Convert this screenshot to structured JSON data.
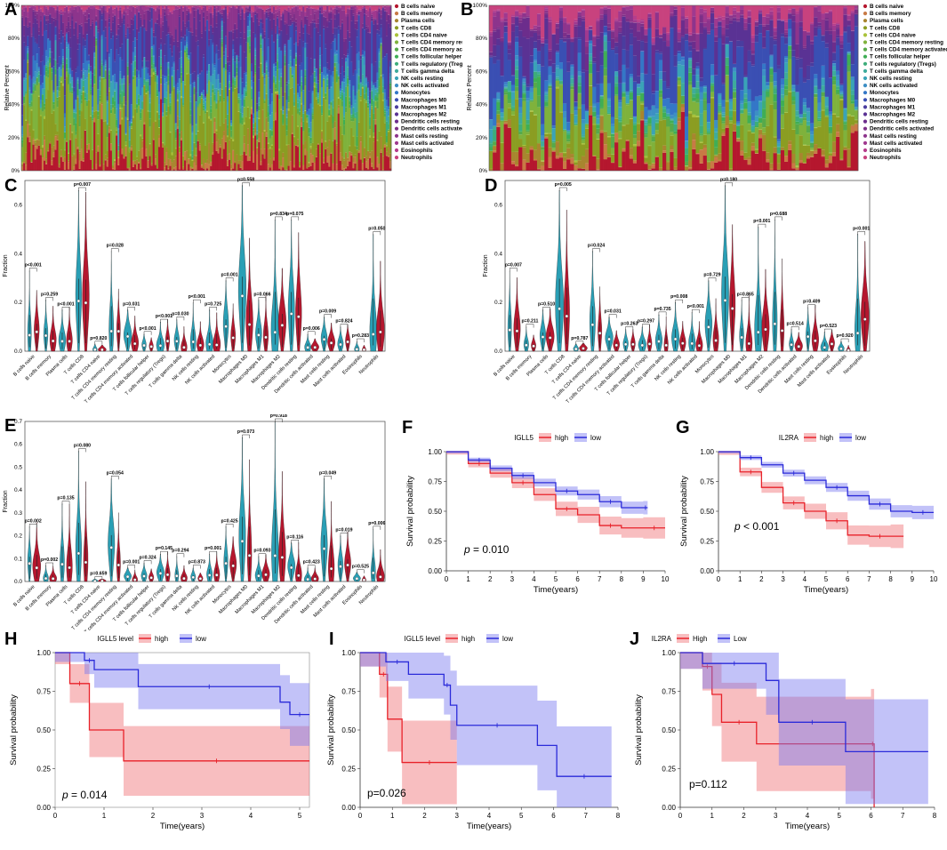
{
  "panels": {
    "A": "A",
    "B": "B",
    "C": "C",
    "D": "D",
    "E": "E",
    "F": "F",
    "G": "G",
    "H": "H",
    "I": "I",
    "J": "J"
  },
  "cell_types": [
    "B cells naive",
    "B cells memory",
    "Plasma cells",
    "T cells CD8",
    "T cells CD4 naive",
    "T cells CD4 memory resting",
    "T cells CD4 memory activated",
    "T cells follicular helper",
    "T cells regulatory (Tregs)",
    "T cells gamma delta",
    "NK cells resting",
    "NK cells activated",
    "Monocytes",
    "Macrophages M0",
    "Macrophages M1",
    "Macrophages M2",
    "Dendritic cells resting",
    "Dendritic cells activated",
    "Mast cells resting",
    "Mast cells activated",
    "Eosinophils",
    "Neutrophils"
  ],
  "cell_colors": [
    "#b5172e",
    "#c87a45",
    "#a8852f",
    "#8b9d22",
    "#a9c23a",
    "#7fb23c",
    "#57a94a",
    "#3fae55",
    "#3dad7a",
    "#3eab9c",
    "#3aa3b7",
    "#3d8fc4",
    "#3477c7",
    "#3a4fb3",
    "#4a3d9f",
    "#5a3294",
    "#6c2d8c",
    "#7d3088",
    "#8d348c",
    "#a0398f",
    "#b63d8b",
    "#c8427e"
  ],
  "chart_data": [
    {
      "panel": "A",
      "type": "bar",
      "stacked": true,
      "ylabel": "Relative Percent",
      "yticks": [
        "0%",
        "20%",
        "40%",
        "60%",
        "80%",
        "100%"
      ],
      "n_samples": 200
    },
    {
      "panel": "B",
      "type": "bar",
      "stacked": true,
      "ylabel": "Relative Percent",
      "yticks": [
        "0%",
        "20%",
        "40%",
        "60%",
        "80%",
        "100%"
      ],
      "n_samples": 100
    },
    {
      "panel": "C",
      "type": "violin",
      "ylabel": "Fraction",
      "ylim": [
        0,
        0.7
      ],
      "yticks": [
        "0.0",
        "0.2",
        "0.4",
        "0.6"
      ],
      "pvalues": [
        "p<0.001",
        "p=0.259",
        "p<0.001",
        "p=0.007",
        "p=0.820",
        "p=0.028",
        "p=0.031",
        "p<0.001",
        "p<0.001",
        "p=0.030",
        "p<0.001",
        "p=0.725",
        "p=0.001",
        "p=0.558",
        "p=0.066",
        "p=0.834",
        "p=0.075",
        "p=0.006",
        "p=0.009",
        "p=0.824",
        "p=0.283",
        "p=0.050"
      ],
      "max_values": [
        0.33,
        0.21,
        0.17,
        0.66,
        0.03,
        0.41,
        0.17,
        0.07,
        0.12,
        0.13,
        0.2,
        0.17,
        0.29,
        0.68,
        0.21,
        0.54,
        0.54,
        0.07,
        0.14,
        0.1,
        0.04,
        0.48
      ]
    },
    {
      "panel": "D",
      "type": "violin",
      "ylabel": "Fraction",
      "ylim": [
        0,
        0.7
      ],
      "yticks": [
        "0.0",
        "0.2",
        "0.4",
        "0.6"
      ],
      "pvalues": [
        "p=0.007",
        "p=0.211",
        "p=0.510",
        "p=0.005",
        "p=0.787",
        "p=0.024",
        "p=0.031",
        "p=0.263",
        "p=0.297",
        "p=0.735",
        "p=0.008",
        "p<0.001",
        "p=0.729",
        "p=0.180",
        "p=0.865",
        "p<0.001",
        "p=0.688",
        "p=0.514",
        "p=0.409",
        "p=0.523",
        "p=0.920",
        "p<0.001"
      ],
      "max_values": [
        0.33,
        0.1,
        0.17,
        0.66,
        0.03,
        0.41,
        0.14,
        0.09,
        0.1,
        0.15,
        0.2,
        0.16,
        0.29,
        0.68,
        0.21,
        0.51,
        0.54,
        0.09,
        0.18,
        0.08,
        0.04,
        0.48
      ]
    },
    {
      "panel": "E",
      "type": "violin",
      "ylabel": "Fraction",
      "ylim": [
        0,
        0.7
      ],
      "yticks": [
        "0.0",
        "0.1",
        "0.2",
        "0.3",
        "0.4",
        "0.5",
        "0.6",
        "0.7"
      ],
      "pvalues": [
        "p=0.002",
        "p=0.002",
        "p=0.135",
        "p=0.080",
        "p=0.659",
        "p=0.054",
        "p=0.001",
        "p=0.324",
        "p=0.145",
        "p=0.294",
        "p=0.873",
        "p=0.001",
        "p=0.425",
        "p=0.073",
        "p=0.093",
        "p=0.918",
        "p=0.116",
        "p=0.423",
        "p=0.049",
        "p=0.019",
        "p=0.525",
        "p=0.006"
      ],
      "max_values": [
        0.24,
        0.07,
        0.34,
        0.57,
        0.01,
        0.45,
        0.06,
        0.08,
        0.12,
        0.11,
        0.06,
        0.12,
        0.24,
        0.63,
        0.11,
        0.7,
        0.17,
        0.06,
        0.45,
        0.2,
        0.04,
        0.23
      ]
    },
    {
      "panel": "F",
      "type": "line",
      "title": "IGLL5",
      "legend": [
        "high",
        "low"
      ],
      "xlabel": "Time(years)",
      "ylabel": "Survival probability",
      "xlim": [
        0,
        10
      ],
      "ylim": [
        0,
        1
      ],
      "xticks": [
        "0",
        "1",
        "2",
        "3",
        "4",
        "5",
        "6",
        "7",
        "8",
        "9",
        "10"
      ],
      "yticks": [
        "0.00",
        "0.25",
        "0.50",
        "0.75",
        "1.00"
      ],
      "pvalue_label": "p",
      "pvalue_text": " = 0.010",
      "series": [
        {
          "name": "high",
          "x": [
            0,
            1,
            2,
            3,
            4,
            5,
            6,
            7,
            8,
            9,
            10
          ],
          "y": [
            1.0,
            0.9,
            0.82,
            0.74,
            0.64,
            0.52,
            0.47,
            0.38,
            0.36,
            0.36,
            0.36
          ]
        },
        {
          "name": "low",
          "x": [
            0,
            1,
            2,
            3,
            4,
            5,
            6,
            7,
            8,
            9,
            9.2
          ],
          "y": [
            1.0,
            0.93,
            0.86,
            0.8,
            0.74,
            0.67,
            0.64,
            0.58,
            0.53,
            0.53,
            0.53
          ]
        }
      ]
    },
    {
      "panel": "G",
      "type": "line",
      "title": "IL2RA",
      "legend": [
        "high",
        "low"
      ],
      "xlabel": "Time(years)",
      "ylabel": "Survival probability",
      "xlim": [
        0,
        10
      ],
      "ylim": [
        0,
        1
      ],
      "xticks": [
        "0",
        "1",
        "2",
        "3",
        "4",
        "5",
        "6",
        "7",
        "8",
        "9",
        "10"
      ],
      "yticks": [
        "0.00",
        "0.25",
        "0.50",
        "0.75",
        "1.00"
      ],
      "pvalue_label": "p",
      "pvalue_text": " < 0.001",
      "series": [
        {
          "name": "high",
          "x": [
            0,
            1,
            2,
            3,
            4,
            5,
            6,
            7,
            8,
            8.6
          ],
          "y": [
            1.0,
            0.83,
            0.7,
            0.57,
            0.5,
            0.42,
            0.3,
            0.29,
            0.29,
            0.29
          ]
        },
        {
          "name": "low",
          "x": [
            0,
            1,
            2,
            3,
            4,
            5,
            6,
            7,
            8,
            9,
            10
          ],
          "y": [
            1.0,
            0.95,
            0.89,
            0.82,
            0.76,
            0.7,
            0.63,
            0.56,
            0.5,
            0.49,
            0.49
          ]
        }
      ]
    },
    {
      "panel": "H",
      "type": "line",
      "title": "IGLL5 level",
      "legend": [
        "high",
        "low"
      ],
      "xlabel": "Time(years)",
      "ylabel": "Survival probability",
      "xlim": [
        0,
        5.2
      ],
      "ylim": [
        0,
        1
      ],
      "xticks": [
        "0",
        "1",
        "2",
        "3",
        "4",
        "5"
      ],
      "yticks": [
        "0.00",
        "0.25",
        "0.50",
        "0.75",
        "1.00"
      ],
      "pvalue_label": "p",
      "pvalue_text": " = 0.014",
      "series": [
        {
          "name": "high",
          "x": [
            0,
            0.3,
            0.7,
            1.4,
            5.2
          ],
          "y": [
            1.0,
            0.8,
            0.5,
            0.3,
            0.3
          ]
        },
        {
          "name": "low",
          "x": [
            0,
            0.6,
            0.8,
            1.7,
            4.6,
            4.8,
            5.2
          ],
          "y": [
            1.0,
            0.95,
            0.89,
            0.78,
            0.68,
            0.6,
            0.6
          ]
        }
      ]
    },
    {
      "panel": "I",
      "type": "line",
      "title": "IGLL5 level",
      "legend": [
        "high",
        "low"
      ],
      "xlabel": "Time(years)",
      "ylabel": "Survival probability",
      "xlim": [
        0,
        8
      ],
      "ylim": [
        0,
        1
      ],
      "xticks": [
        "0",
        "1",
        "2",
        "3",
        "4",
        "5",
        "6",
        "7",
        "8"
      ],
      "yticks": [
        "0.00",
        "0.25",
        "0.50",
        "0.75",
        "1.00"
      ],
      "pvalue_label": "",
      "pvalue_text": "p=0.026",
      "series": [
        {
          "name": "high",
          "x": [
            0,
            0.6,
            0.85,
            1.3,
            3.0
          ],
          "y": [
            1.0,
            0.86,
            0.57,
            0.29,
            0.29
          ]
        },
        {
          "name": "low",
          "x": [
            0,
            0.8,
            1.5,
            2.6,
            2.8,
            3.0,
            5.5,
            6.1,
            7.8
          ],
          "y": [
            1.0,
            0.94,
            0.86,
            0.79,
            0.66,
            0.53,
            0.4,
            0.2,
            0.2
          ]
        }
      ]
    },
    {
      "panel": "J",
      "type": "line",
      "title": "IL2RA",
      "legend": [
        "High",
        "Low"
      ],
      "xlabel": "Time(years)",
      "ylabel": "Survival probability",
      "xlim": [
        0,
        8
      ],
      "ylim": [
        0,
        1
      ],
      "xticks": [
        "0",
        "1",
        "2",
        "3",
        "4",
        "5",
        "6",
        "7",
        "8"
      ],
      "yticks": [
        "0.00",
        "0.25",
        "0.50",
        "0.75",
        "1.00"
      ],
      "pvalue_label": "",
      "pvalue_text": "p=0.112",
      "series": [
        {
          "name": "High",
          "x": [
            0,
            0.7,
            1.0,
            1.3,
            2.4,
            6.0,
            6.1
          ],
          "y": [
            1.0,
            0.91,
            0.73,
            0.55,
            0.41,
            0.41,
            0.0
          ]
        },
        {
          "name": "Low",
          "x": [
            0,
            0.7,
            2.7,
            3.1,
            5.2,
            7.8
          ],
          "y": [
            1.0,
            0.93,
            0.82,
            0.55,
            0.36,
            0.36
          ]
        }
      ]
    }
  ]
}
